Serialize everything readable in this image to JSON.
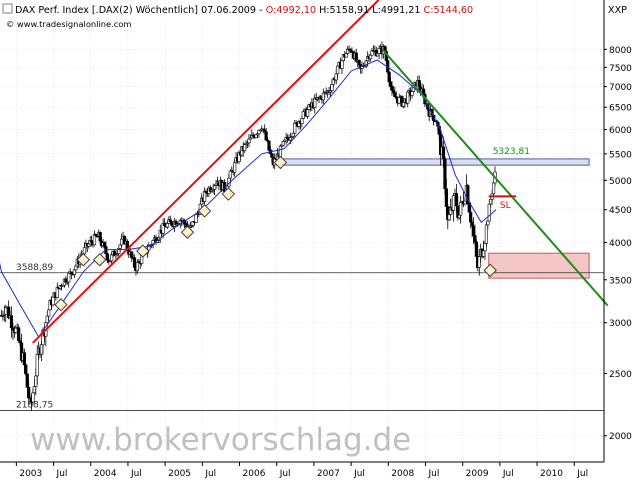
{
  "header": {
    "title_part1": "DAX Perf. Index [.DAX(2) Wöchentlich] 07.06.2009 -",
    "open": "O:4992,10",
    "rest": "H:5158,91 L:4991,21",
    "close": "C:5144,60",
    "site": "© www.tradesignalonline.com",
    "symbol": "XXP"
  },
  "watermark": "www.brokervorschlag.de",
  "colors": {
    "bg": "#ffffff",
    "up_candle": "#ffffff",
    "down_candle": "#000000",
    "candle_outline": "#000000",
    "moving_average": "#1a2bcc",
    "uptrend_line": "#e01010",
    "downtrend_line": "#1a8c1a",
    "resistance_zone_fill": "#d9dcf0",
    "support_zone_fill": "#f5c6c6",
    "support_zone_border": "#c06060",
    "marker_fill": "#fff2cc",
    "close_label": "#d01010",
    "watermark": "#c0c0c0",
    "grid": "#d0d0d0"
  },
  "chart_data": {
    "type": "candlestick",
    "title": "DAX Perf. Index [.DAX(2) Wöchentlich] 07.06.2009",
    "y_scale": "log",
    "ylim": [
      1820,
      9550
    ],
    "xlim": [
      "2002-10",
      "2010-11"
    ],
    "y_ticks": [
      2000,
      2500,
      3000,
      3500,
      4000,
      4500,
      5000,
      5500,
      6000,
      6500,
      7000,
      7500,
      8000
    ],
    "y_tick_labels": [
      "2000",
      "2500",
      "3000",
      "3500",
      "4000",
      "4500",
      "5000",
      "5500",
      "6000",
      "6500",
      "7000",
      "7500",
      "8000"
    ],
    "x_tick_labels": [
      {
        "t": 2003.0,
        "label": "2003"
      },
      {
        "t": 2003.5,
        "label": "Jul"
      },
      {
        "t": 2004.0,
        "label": "2004"
      },
      {
        "t": 2004.5,
        "label": "Jul"
      },
      {
        "t": 2005.0,
        "label": "2005"
      },
      {
        "t": 2005.5,
        "label": "Jul"
      },
      {
        "t": 2006.0,
        "label": "2006"
      },
      {
        "t": 2006.5,
        "label": "Jul"
      },
      {
        "t": 2007.0,
        "label": "2007"
      },
      {
        "t": 2007.5,
        "label": "Jul"
      },
      {
        "t": 2008.0,
        "label": "2008"
      },
      {
        "t": 2008.5,
        "label": "Jul"
      },
      {
        "t": 2009.0,
        "label": "2009"
      },
      {
        "t": 2009.5,
        "label": "Jul"
      },
      {
        "t": 2010.0,
        "label": "2010"
      },
      {
        "t": 2010.5,
        "label": "Jul"
      }
    ],
    "grid": true,
    "last_ohlc": {
      "date": "2009-06-07",
      "open": 4992.1,
      "high": 5158.91,
      "low": 4991.21,
      "close": 5144.6
    },
    "approx_price_path": [
      {
        "t": 2002.6,
        "v": 3400
      },
      {
        "t": 2002.72,
        "v": 2900
      },
      {
        "t": 2002.85,
        "v": 3200
      },
      {
        "t": 2003.0,
        "v": 2900
      },
      {
        "t": 2003.1,
        "v": 2600
      },
      {
        "t": 2003.19,
        "v": 2200
      },
      {
        "t": 2003.3,
        "v": 2700
      },
      {
        "t": 2003.45,
        "v": 3200
      },
      {
        "t": 2003.6,
        "v": 3450
      },
      {
        "t": 2003.75,
        "v": 3600
      },
      {
        "t": 2003.95,
        "v": 3950
      },
      {
        "t": 2004.1,
        "v": 4100
      },
      {
        "t": 2004.25,
        "v": 3750
      },
      {
        "t": 2004.45,
        "v": 4050
      },
      {
        "t": 2004.6,
        "v": 3650
      },
      {
        "t": 2004.75,
        "v": 3900
      },
      {
        "t": 2005.0,
        "v": 4250
      },
      {
        "t": 2005.2,
        "v": 4350
      },
      {
        "t": 2005.35,
        "v": 4200
      },
      {
        "t": 2005.55,
        "v": 4800
      },
      {
        "t": 2005.7,
        "v": 5000
      },
      {
        "t": 2005.8,
        "v": 4850
      },
      {
        "t": 2006.0,
        "v": 5500
      },
      {
        "t": 2006.3,
        "v": 6100
      },
      {
        "t": 2006.45,
        "v": 5300
      },
      {
        "t": 2006.6,
        "v": 5700
      },
      {
        "t": 2006.8,
        "v": 6200
      },
      {
        "t": 2007.0,
        "v": 6600
      },
      {
        "t": 2007.2,
        "v": 6900
      },
      {
        "t": 2007.4,
        "v": 7800
      },
      {
        "t": 2007.5,
        "v": 8050
      },
      {
        "t": 2007.62,
        "v": 7400
      },
      {
        "t": 2007.75,
        "v": 7900
      },
      {
        "t": 2007.95,
        "v": 8000
      },
      {
        "t": 2008.05,
        "v": 6800
      },
      {
        "t": 2008.2,
        "v": 6600
      },
      {
        "t": 2008.4,
        "v": 7100
      },
      {
        "t": 2008.55,
        "v": 6400
      },
      {
        "t": 2008.65,
        "v": 6200
      },
      {
        "t": 2008.75,
        "v": 5200
      },
      {
        "t": 2008.8,
        "v": 4300
      },
      {
        "t": 2008.9,
        "v": 4700
      },
      {
        "t": 2008.95,
        "v": 4400
      },
      {
        "t": 2009.05,
        "v": 4900
      },
      {
        "t": 2009.12,
        "v": 4300
      },
      {
        "t": 2009.2,
        "v": 3650
      },
      {
        "t": 2009.3,
        "v": 4100
      },
      {
        "t": 2009.38,
        "v": 4700
      },
      {
        "t": 2009.44,
        "v": 5145
      }
    ],
    "approx_moving_average": [
      {
        "t": 2002.6,
        "v": 4600
      },
      {
        "t": 2002.8,
        "v": 3600
      },
      {
        "t": 2003.05,
        "v": 3200
      },
      {
        "t": 2003.3,
        "v": 2850
      },
      {
        "t": 2003.6,
        "v": 3200
      },
      {
        "t": 2003.9,
        "v": 3600
      },
      {
        "t": 2004.2,
        "v": 3900
      },
      {
        "t": 2004.5,
        "v": 3900
      },
      {
        "t": 2004.8,
        "v": 3950
      },
      {
        "t": 2005.1,
        "v": 4200
      },
      {
        "t": 2005.5,
        "v": 4500
      },
      {
        "t": 2005.9,
        "v": 5000
      },
      {
        "t": 2006.3,
        "v": 5500
      },
      {
        "t": 2006.6,
        "v": 5600
      },
      {
        "t": 2006.9,
        "v": 6100
      },
      {
        "t": 2007.2,
        "v": 6700
      },
      {
        "t": 2007.5,
        "v": 7400
      },
      {
        "t": 2007.85,
        "v": 7700
      },
      {
        "t": 2008.15,
        "v": 7300
      },
      {
        "t": 2008.45,
        "v": 6800
      },
      {
        "t": 2008.7,
        "v": 6000
      },
      {
        "t": 2008.9,
        "v": 5100
      },
      {
        "t": 2009.1,
        "v": 4600
      },
      {
        "t": 2009.25,
        "v": 4300
      },
      {
        "t": 2009.45,
        "v": 4500
      }
    ],
    "trendlines": [
      {
        "name": "uptrend",
        "from": {
          "t": 2003.22,
          "v": 2790
        },
        "to": {
          "t": 2007.87,
          "v": 9550
        }
      },
      {
        "name": "downtrend",
        "from": {
          "t": 2007.92,
          "v": 8000
        },
        "to": {
          "t": 2010.95,
          "v": 3190
        }
      }
    ],
    "zones": [
      {
        "name": "resistance",
        "t_from": 2006.55,
        "t_to": 2010.7,
        "v_from": 5280,
        "v_to": 5400
      },
      {
        "name": "support",
        "t_from": 2009.35,
        "t_to": 2010.7,
        "v_from": 3520,
        "v_to": 3850
      }
    ],
    "horizontal_lines": [
      {
        "name": "level-3588",
        "v": 3588.89,
        "label": "3588,89"
      },
      {
        "name": "level-2188",
        "v": 2188.75,
        "label": "2188,75"
      }
    ],
    "stop_line": {
      "v": 4720,
      "t_from": 2009.35,
      "t_to": 2009.72
    },
    "annotations": [
      {
        "name": "label-5323",
        "text": "5323,81",
        "t": 2009.35,
        "v": 5500
      },
      {
        "name": "label-sl",
        "text": "SL",
        "t": 2009.5,
        "v": 4530
      }
    ],
    "markers": [
      {
        "t": 2003.6,
        "v": 3200
      },
      {
        "t": 2003.9,
        "v": 3760
      },
      {
        "t": 2004.12,
        "v": 3760
      },
      {
        "t": 2004.7,
        "v": 3880
      },
      {
        "t": 2005.3,
        "v": 4150
      },
      {
        "t": 2005.53,
        "v": 4480
      },
      {
        "t": 2005.85,
        "v": 4760
      },
      {
        "t": 2006.55,
        "v": 5330
      },
      {
        "t": 2009.37,
        "v": 3620
      }
    ]
  }
}
